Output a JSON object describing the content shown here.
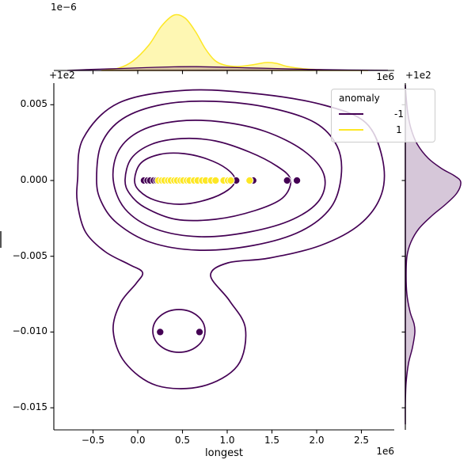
{
  "figure": {
    "kind": "seaborn jointplot: KDE contours + scatter with marginal densities"
  },
  "axes": {
    "main": {
      "xlabel": "longest",
      "x_offset_text": "1e6",
      "y_offset_text": "+1e2",
      "x_tick_labels": [
        "−0.5",
        "0.0",
        "0.5",
        "1.0",
        "1.5",
        "2.0",
        "2.5"
      ],
      "y_tick_labels": [
        "0.005",
        "0.000",
        "−0.005",
        "−0.010",
        "−0.015"
      ]
    },
    "top_marginal": {
      "y_offset_text": "1e−6",
      "x_offset_text": "1e6"
    },
    "right_marginal": {
      "y_offset_text": "+1e2"
    }
  },
  "legend": {
    "title": "anomaly",
    "entries": [
      {
        "label": "-1",
        "color": "#440154"
      },
      {
        "label": "1",
        "color": "#fde725"
      }
    ]
  },
  "chart_data": {
    "type": "scatter",
    "subtype": "kde-jointplot",
    "title": "",
    "xlabel": "longest",
    "ylabel": "",
    "hue_variable": "anomaly",
    "x_unit_multiplier": 1000000,
    "x_offset_label": "1e6",
    "y_axis_offset_label": "+1e2",
    "top_marginal_scale_label": "1e−6",
    "x_ticks": [
      -0.5,
      0.0,
      0.5,
      1.0,
      1.5,
      2.0,
      2.5
    ],
    "y_ticks": [
      0.005,
      0.0,
      -0.005,
      -0.01,
      -0.015
    ],
    "x_range_in_1e6": [
      -0.94,
      2.87
    ],
    "y_range_offset_units": [
      -0.0165,
      0.0064
    ],
    "grid": false,
    "legend_position": "upper right",
    "series": [
      {
        "name": "-1",
        "color": "#440154",
        "points_x_1e6": [
          0.07,
          0.11,
          0.14,
          0.18,
          0.21,
          1.1,
          1.29,
          1.67,
          1.78,
          0.25,
          0.69
        ],
        "points_y_offset": [
          0.0,
          0.0,
          0.0,
          0.0,
          0.0,
          0.0,
          0.0,
          0.0,
          0.0,
          -0.01,
          -0.01
        ]
      },
      {
        "name": "1",
        "color": "#fde725",
        "points_x_1e6": [
          0.23,
          0.27,
          0.3,
          0.34,
          0.37,
          0.41,
          0.44,
          0.48,
          0.51,
          0.55,
          0.58,
          0.63,
          0.67,
          0.72,
          0.76,
          0.82,
          0.87,
          0.96,
          1.01,
          1.04,
          1.25
        ],
        "points_y_offset": [
          0.0,
          0.0,
          0.0,
          0.0,
          0.0,
          0.0,
          0.0,
          0.0,
          0.0,
          0.0,
          0.0,
          0.0,
          0.0,
          0.0,
          0.0,
          0.0,
          0.0,
          0.0,
          0.0,
          0.0,
          0.0
        ]
      }
    ],
    "contours": {
      "levels": 6,
      "color": "#440154",
      "main_mode_center": {
        "x_1e6": 0.45,
        "y_offset": 0.0
      },
      "secondary_lobe_center": {
        "x_1e6": 0.46,
        "y_offset": -0.01
      },
      "description": "5 nested rings around the main mode; outermost ring necks down to a secondary lobe holding a small ellipse around the two y=-0.010 points"
    },
    "marginal_top": {
      "series": [
        {
          "name": "1",
          "color": "#fde725",
          "peak_x_1e6": 0.41,
          "shape": "tall peak with small right shoulder near 1.4e6"
        },
        {
          "name": "-1",
          "color": "#440154",
          "peak_x_1e6": 0.6,
          "shape": "very low broad bump"
        }
      ]
    },
    "marginal_right": {
      "series": [
        {
          "name": "-1",
          "color": "#440154",
          "peak_y_offset": 0.0,
          "secondary_peak_y_offset": -0.01
        }
      ]
    }
  }
}
